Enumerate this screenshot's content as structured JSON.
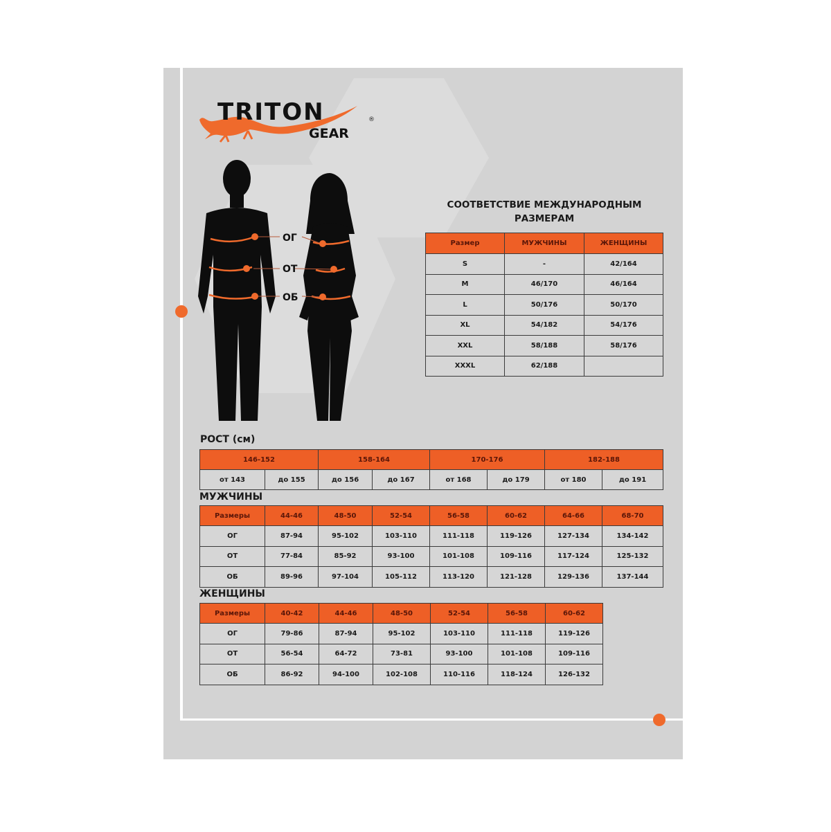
{
  "brand": {
    "name": "TRITON",
    "sub": "GEAR",
    "mark": "®",
    "accent": "#ee5f26"
  },
  "figure_labels": {
    "chest": "ОГ",
    "waist": "ОТ",
    "hips": "ОБ"
  },
  "intl": {
    "title_line1": "СООТВЕТСТВИЕ МЕЖДУНАРОДНЫМ",
    "title_line2": "РАЗМЕРАМ",
    "headers": [
      "Размер",
      "МУЖЧИНЫ",
      "ЖЕНЩИНЫ"
    ],
    "rows": [
      [
        "S",
        "-",
        "42/164"
      ],
      [
        "M",
        "46/170",
        "46/164"
      ],
      [
        "L",
        "50/176",
        "50/170"
      ],
      [
        "XL",
        "54/182",
        "54/176"
      ],
      [
        "XXL",
        "58/188",
        "58/176"
      ],
      [
        "XXXL",
        "62/188",
        ""
      ]
    ]
  },
  "height": {
    "title": "РОСТ (см)",
    "groups": [
      "146-152",
      "158-164",
      "170-176",
      "182-188"
    ],
    "subs": [
      "от 143",
      "до 155",
      "до 156",
      "до 167",
      "от 168",
      "до 179",
      "от 180",
      "до 191"
    ]
  },
  "men": {
    "title": "МУЖЧИНЫ",
    "headers": [
      "Размеры",
      "44-46",
      "48-50",
      "52-54",
      "56-58",
      "60-62",
      "64-66",
      "68-70"
    ],
    "rows": [
      [
        "ОГ",
        "87-94",
        "95-102",
        "103-110",
        "111-118",
        "119-126",
        "127-134",
        "134-142"
      ],
      [
        "ОТ",
        "77-84",
        "85-92",
        "93-100",
        "101-108",
        "109-116",
        "117-124",
        "125-132"
      ],
      [
        "ОБ",
        "89-96",
        "97-104",
        "105-112",
        "113-120",
        "121-128",
        "129-136",
        "137-144"
      ]
    ]
  },
  "women": {
    "title": "ЖЕНЩИНЫ",
    "headers": [
      "Размеры",
      "40-42",
      "44-46",
      "48-50",
      "52-54",
      "56-58",
      "60-62"
    ],
    "rows": [
      [
        "ОГ",
        "79-86",
        "87-94",
        "95-102",
        "103-110",
        "111-118",
        "119-126"
      ],
      [
        "ОТ",
        "56-54",
        "64-72",
        "73-81",
        "93-100",
        "101-108",
        "109-116"
      ],
      [
        "ОБ",
        "86-92",
        "94-100",
        "102-108",
        "110-116",
        "118-124",
        "126-132"
      ]
    ]
  }
}
